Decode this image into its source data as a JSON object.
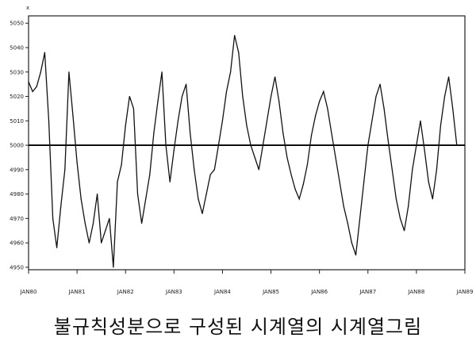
{
  "caption": "불규칙성분으로 구성된 시계열의 시계열그림",
  "chart_data": {
    "type": "line",
    "title": "",
    "xlabel": "",
    "ylabel": "",
    "y_unit_marker": "x",
    "ylim": [
      4949,
      5053
    ],
    "grid": false,
    "reference_line": 5000,
    "yticks": [
      4950,
      4960,
      4970,
      4980,
      4990,
      5000,
      5010,
      5020,
      5030,
      5040,
      5050
    ],
    "ytick_labels": [
      "4950",
      "4960",
      "4970",
      "4980",
      "4990",
      "5000",
      "5010",
      "5020",
      "5030",
      "5040",
      "5050"
    ],
    "xticks": [
      0,
      12,
      24,
      36,
      48,
      60,
      72,
      84,
      96,
      108
    ],
    "xtick_labels": [
      "JAN80",
      "JAN81",
      "JAN82",
      "JAN83",
      "JAN84",
      "JAN85",
      "JAN86",
      "JAN87",
      "JAN88",
      "JAN89"
    ],
    "xlim": [
      0,
      108
    ],
    "series": [
      {
        "values": [
          5026,
          5022,
          5024,
          5030,
          5038,
          5010,
          4970,
          4958,
          4975,
          4990,
          5030,
          5012,
          4993,
          4978,
          4968,
          4960,
          4968,
          4980,
          4960,
          4965,
          4970,
          4950,
          4985,
          4992,
          5008,
          5020,
          5015,
          4980,
          4968,
          4978,
          4988,
          5005,
          5018,
          5030,
          5000,
          4985,
          4998,
          5010,
          5020,
          5025,
          5005,
          4990,
          4978,
          4972,
          4980,
          4988,
          4990,
          5000,
          5010,
          5022,
          5030,
          5045,
          5038,
          5020,
          5008,
          5000,
          4995,
          4990,
          5000,
          5010,
          5020,
          5028,
          5018,
          5005,
          4995,
          4988,
          4982,
          4978,
          4984,
          4992,
          5004,
          5012,
          5018,
          5022,
          5015,
          5005,
          4995,
          4985,
          4975,
          4968,
          4960,
          4955,
          4970,
          4985,
          5000,
          5010,
          5020,
          5025,
          5015,
          5002,
          4990,
          4978,
          4970,
          4965,
          4975,
          4990,
          5000,
          5010,
          4998,
          4985,
          4978,
          4990,
          5008,
          5020,
          5028,
          5015,
          5000
        ]
      }
    ]
  }
}
